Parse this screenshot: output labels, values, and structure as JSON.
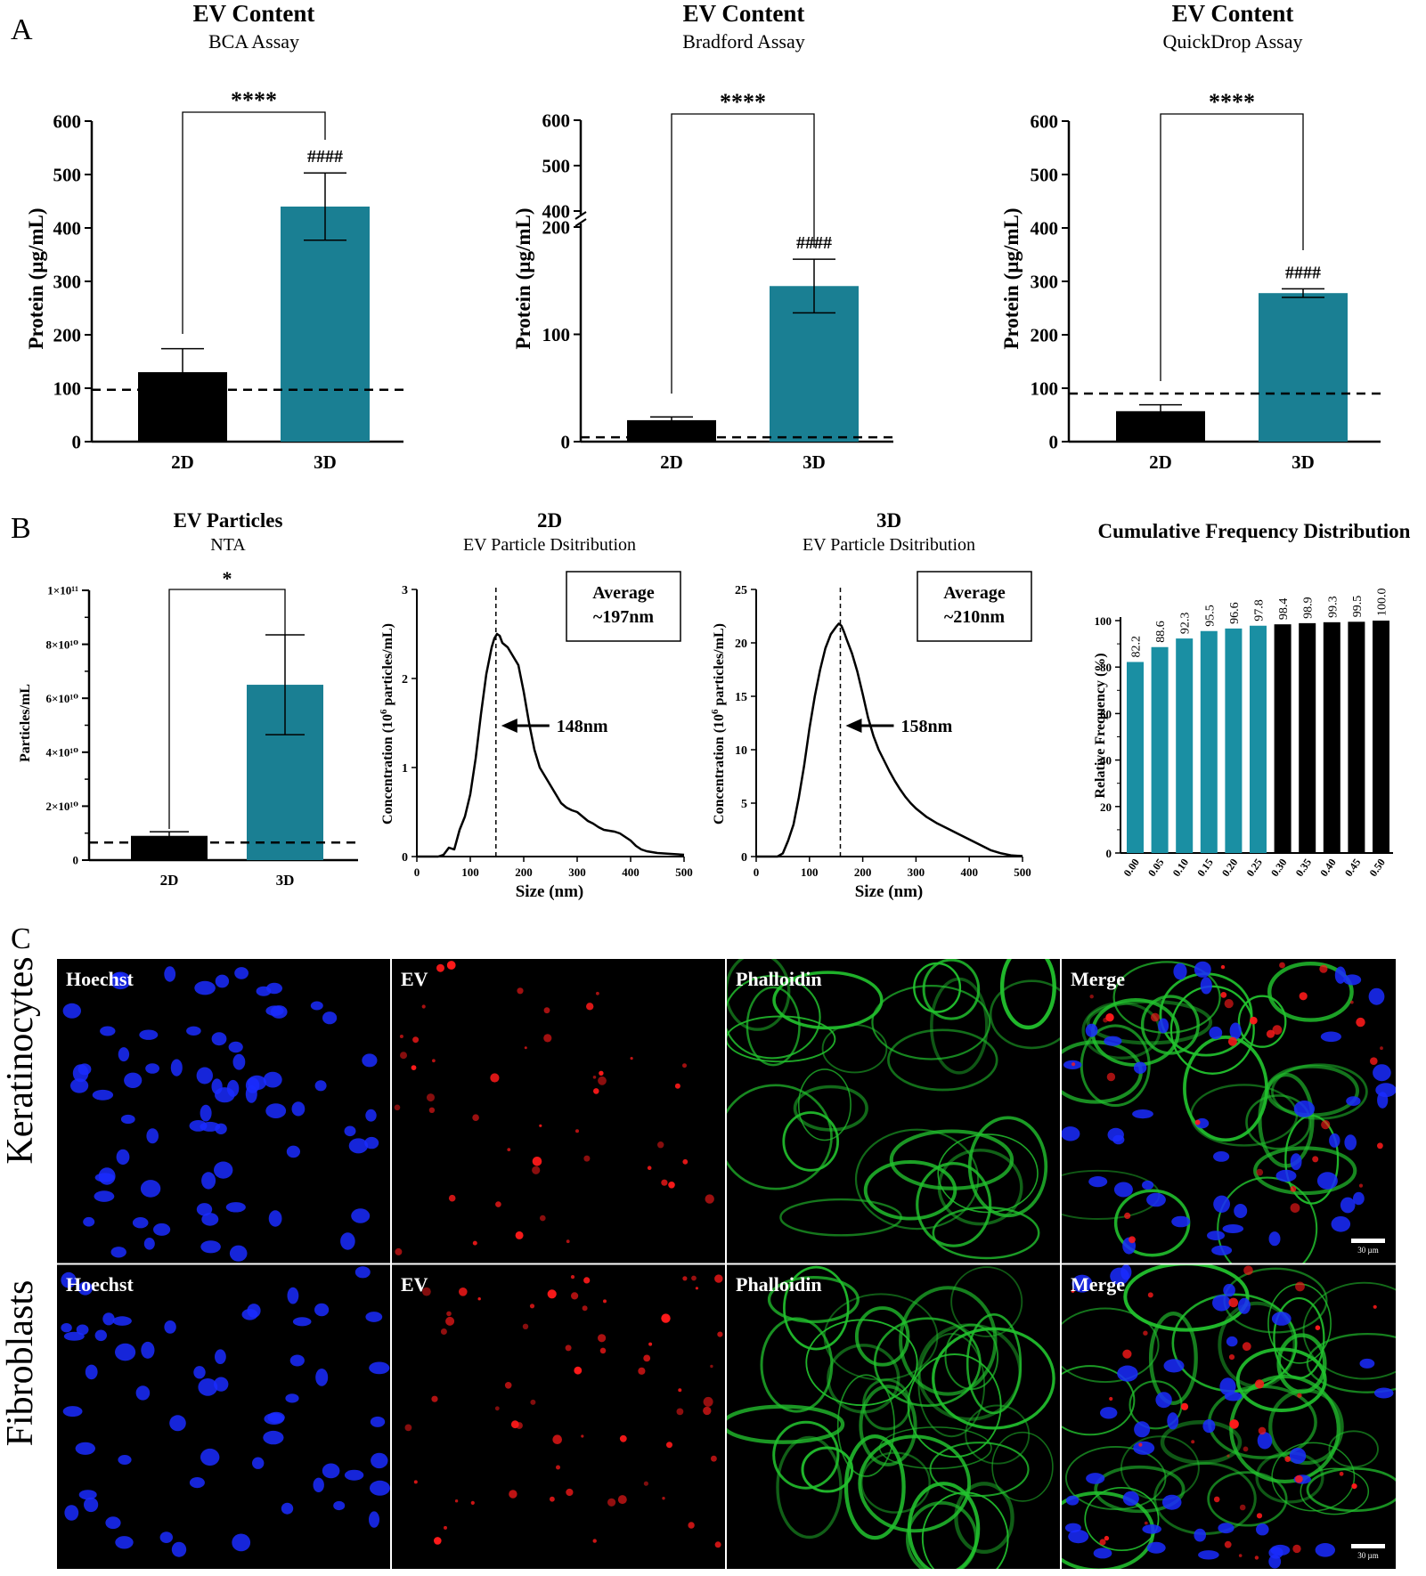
{
  "panel_labels": {
    "a": "A",
    "b": "B",
    "c": "C"
  },
  "chart_data": [
    {
      "id": "bca",
      "type": "bar",
      "title": "EV Content",
      "subtitle": "BCA Assay",
      "ylabel": "Protein (µg/mL)",
      "categories": [
        "2D",
        "3D"
      ],
      "values": [
        130,
        440
      ],
      "errors": [
        44,
        63
      ],
      "ylim": [
        0,
        600
      ],
      "yticks": [
        "0",
        "100",
        "200",
        "300",
        "400",
        "500",
        "600"
      ],
      "yticks_values": [
        0,
        100,
        200,
        300,
        400,
        500,
        600
      ],
      "baseline": 97,
      "significance": "****",
      "hash_label": "####",
      "colors": [
        "#000000",
        "#1a7f93"
      ]
    },
    {
      "id": "bradford",
      "type": "bar",
      "title": "EV Content",
      "subtitle": "Bradford Assay",
      "ylabel": "Protein (µg/mL)",
      "categories": [
        "2D",
        "3D"
      ],
      "values": [
        20,
        145
      ],
      "errors": [
        3,
        25
      ],
      "ylim": [
        0,
        600
      ],
      "axis_break": [
        200,
        400
      ],
      "yticks": [
        "0",
        "100",
        "200",
        "400",
        "500",
        "600"
      ],
      "yticks_values": [
        0,
        100,
        200,
        400,
        500,
        600
      ],
      "baseline": 4,
      "significance": "****",
      "hash_label": "####",
      "colors": [
        "#000000",
        "#1a7f93"
      ]
    },
    {
      "id": "quickdrop",
      "type": "bar",
      "title": "EV Content",
      "subtitle": "QuickDrop Assay",
      "ylabel": "Protein (µg/mL)",
      "categories": [
        "2D",
        "3D"
      ],
      "values": [
        57,
        278
      ],
      "errors": [
        12,
        8
      ],
      "ylim": [
        0,
        600
      ],
      "yticks": [
        "0",
        "100",
        "200",
        "300",
        "400",
        "500",
        "600"
      ],
      "yticks_values": [
        0,
        100,
        200,
        300,
        400,
        500,
        600
      ],
      "baseline": 90,
      "significance": "****",
      "hash_label": "####",
      "colors": [
        "#000000",
        "#1a7f93"
      ]
    },
    {
      "id": "nta",
      "type": "bar",
      "title": "EV Particles",
      "subtitle": "NTA",
      "ylabel": "Particles/mL",
      "categories": [
        "2D",
        "3D"
      ],
      "values": [
        9000000000.0,
        65000000000.0
      ],
      "errors": [
        1500000000.0,
        18500000000.0
      ],
      "ylim": [
        0,
        100000000000.0
      ],
      "yticks": [
        "0",
        "2×10¹⁰",
        "4×10¹⁰",
        "6×10¹⁰",
        "8×10¹⁰",
        "1×10¹¹"
      ],
      "yticks_values": [
        0,
        20000000000.0,
        40000000000.0,
        60000000000.0,
        80000000000.0,
        100000000000.0
      ],
      "baseline": 6500000000.0,
      "significance": "*",
      "colors": [
        "#000000",
        "#1a7f93"
      ]
    },
    {
      "id": "dist2d",
      "type": "line",
      "title": "2D",
      "subtitle": "EV Particle Dsitribution",
      "xlabel": "Size (nm)",
      "ylabel_parts": [
        "Concentration (10",
        "6",
        " particles/mL)"
      ],
      "xlim": [
        0,
        500
      ],
      "ylim": [
        0,
        3
      ],
      "xticks": [
        "0",
        "100",
        "200",
        "300",
        "400",
        "500"
      ],
      "xticks_values": [
        0,
        100,
        200,
        300,
        400,
        500
      ],
      "yticks": [
        "0",
        "1",
        "2",
        "3"
      ],
      "yticks_values": [
        0,
        1,
        2,
        3
      ],
      "x": [
        0,
        40,
        50,
        60,
        70,
        80,
        90,
        100,
        110,
        120,
        130,
        140,
        145,
        150,
        155,
        160,
        170,
        180,
        190,
        200,
        210,
        220,
        230,
        240,
        250,
        260,
        270,
        280,
        290,
        300,
        310,
        320,
        330,
        340,
        350,
        360,
        370,
        380,
        390,
        400,
        410,
        420,
        430,
        450,
        475,
        500
      ],
      "y": [
        0,
        0,
        0.02,
        0.1,
        0.08,
        0.3,
        0.45,
        0.7,
        1.1,
        1.6,
        2.05,
        2.35,
        2.45,
        2.5,
        2.48,
        2.4,
        2.35,
        2.25,
        2.15,
        1.85,
        1.5,
        1.2,
        1.0,
        0.9,
        0.8,
        0.7,
        0.6,
        0.55,
        0.52,
        0.5,
        0.45,
        0.4,
        0.37,
        0.33,
        0.3,
        0.29,
        0.28,
        0.26,
        0.22,
        0.18,
        0.12,
        0.08,
        0.06,
        0.04,
        0.03,
        0.02
      ],
      "marker_x": 148,
      "marker_label": "148nm",
      "box_lines": [
        "Average",
        "~197nm"
      ]
    },
    {
      "id": "dist3d",
      "type": "line",
      "title": "3D",
      "subtitle": "EV Particle Dsitribution",
      "xlabel": "Size (nm)",
      "ylabel_parts": [
        "Concentration (10",
        "6",
        " particles/mL)"
      ],
      "xlim": [
        0,
        500
      ],
      "ylim": [
        0,
        25
      ],
      "xticks": [
        "0",
        "100",
        "200",
        "300",
        "400",
        "500"
      ],
      "xticks_values": [
        0,
        100,
        200,
        300,
        400,
        500
      ],
      "yticks": [
        "0",
        "5",
        "10",
        "15",
        "20",
        "25"
      ],
      "yticks_values": [
        0,
        5,
        10,
        15,
        20,
        25
      ],
      "x": [
        0,
        40,
        50,
        60,
        70,
        80,
        90,
        100,
        110,
        120,
        130,
        140,
        150,
        155,
        160,
        165,
        170,
        180,
        190,
        200,
        210,
        220,
        230,
        240,
        250,
        260,
        270,
        280,
        290,
        300,
        320,
        340,
        360,
        380,
        400,
        420,
        440,
        460,
        480,
        500
      ],
      "y": [
        0,
        0,
        0.3,
        1.5,
        3,
        5.5,
        8.5,
        12,
        15,
        17.5,
        19.5,
        20.8,
        21.5,
        21.8,
        21.6,
        21,
        20.3,
        19,
        17.3,
        15.2,
        13,
        11.3,
        10,
        9,
        8,
        7.1,
        6.3,
        5.6,
        5,
        4.5,
        3.7,
        3.1,
        2.6,
        2.1,
        1.6,
        1.1,
        0.6,
        0.3,
        0.1,
        0.05
      ],
      "marker_x": 158,
      "marker_label": "158nm",
      "box_lines": [
        "Average",
        "~210nm"
      ]
    },
    {
      "id": "cumulative",
      "type": "bar",
      "title": "Cumulative Frequency Distribution",
      "ylabel": "Relative Frequency (%)",
      "categories": [
        "0.00",
        "0.05",
        "0.10",
        "0.15",
        "0.20",
        "0.25",
        "0.30",
        "0.35",
        "0.40",
        "0.45",
        "0.50"
      ],
      "values": [
        82.2,
        88.6,
        92.3,
        95.5,
        96.6,
        97.8,
        98.4,
        98.9,
        99.3,
        99.5,
        100.0
      ],
      "value_labels": [
        "82.2",
        "88.6",
        "92.3",
        "95.5",
        "96.6",
        "97.8",
        "98.4",
        "98.9",
        "99.3",
        "99.5",
        "100.0"
      ],
      "ylim": [
        0,
        100
      ],
      "yticks": [
        "0",
        "20",
        "40",
        "60",
        "80",
        "100"
      ],
      "yticks_values": [
        0,
        20,
        40,
        60,
        80,
        100
      ],
      "bar_colors": [
        "#1a8fa3",
        "#1a8fa3",
        "#1a8fa3",
        "#1a8fa3",
        "#1a8fa3",
        "#1a8fa3",
        "#000000",
        "#000000",
        "#000000",
        "#000000",
        "#000000"
      ]
    }
  ],
  "micrographs": {
    "rows": [
      "Keratinocytes",
      "Fibroblasts"
    ],
    "columns": [
      "Hoechst",
      "EV",
      "Phalloidin",
      "Merge"
    ],
    "scale_bar_label": "30 µm",
    "channel_colors": {
      "hoechst": "#1a2cff",
      "ev": "#ff1a1a",
      "phalloidin": "#22c22e",
      "background": "#000000"
    }
  }
}
